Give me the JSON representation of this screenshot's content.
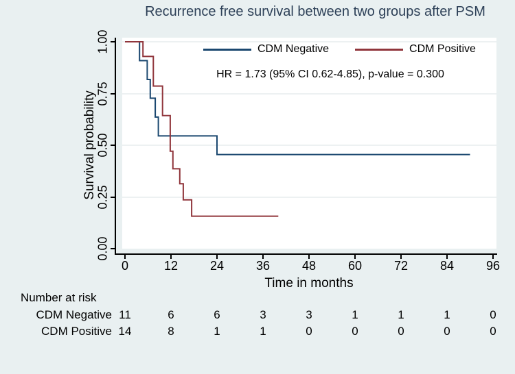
{
  "title": "Recurrence free survival between two groups after PSM",
  "colors": {
    "background": "#e9f0f1",
    "plot_background": "#ffffff",
    "gridline": "#edf1f2",
    "axis": "#000000",
    "title_text": "#2e4158",
    "cdm_negative": "#1a476f",
    "cdm_positive": "#90353b"
  },
  "chart_data": {
    "type": "line",
    "subtype": "kaplan-meier-step",
    "title": "Recurrence free survival between two groups after PSM",
    "xlabel": "Time in months",
    "ylabel": "Survival probability",
    "xlim": [
      0,
      96
    ],
    "ylim": [
      0,
      1
    ],
    "xticks": [
      0,
      12,
      24,
      36,
      48,
      60,
      72,
      84,
      96
    ],
    "ytick_values": [
      0,
      0.25,
      0.5,
      0.75,
      1
    ],
    "ytick_labels": [
      "0.00",
      "0.25",
      "0.50",
      "0.75",
      "1.00"
    ],
    "grid": true,
    "legend_position": "inside-top",
    "annotation": "HR = 1.73 (95% CI 0.62-4.85), p-value = 0.300",
    "series": [
      {
        "name": "CDM Negative",
        "color": "#1a476f",
        "steps": [
          [
            0,
            1.0
          ],
          [
            3.8,
            0.909
          ],
          [
            5.8,
            0.818
          ],
          [
            6.6,
            0.727
          ],
          [
            7.9,
            0.636
          ],
          [
            8.7,
            0.545
          ],
          [
            24,
            0.455
          ]
        ],
        "end_time": 90
      },
      {
        "name": "CDM Positive",
        "color": "#90353b",
        "steps": [
          [
            0,
            1.0
          ],
          [
            4.7,
            0.929
          ],
          [
            7.4,
            0.786
          ],
          [
            9.8,
            0.643
          ],
          [
            11.8,
            0.471
          ],
          [
            12.5,
            0.386
          ],
          [
            14.3,
            0.314
          ],
          [
            15.2,
            0.236
          ],
          [
            17.4,
            0.157
          ]
        ],
        "end_time": 40
      }
    ],
    "risk_table": {
      "header": "Number at risk",
      "times": [
        0,
        12,
        24,
        36,
        48,
        60,
        72,
        84,
        96
      ],
      "rows": [
        {
          "label": "CDM Negative",
          "values": [
            "11",
            "6",
            "6",
            "3",
            "3",
            "1",
            "1",
            "1",
            "0"
          ]
        },
        {
          "label": "CDM Positive",
          "values": [
            "14",
            "8",
            "1",
            "1",
            "0",
            "0",
            "0",
            "0",
            "0"
          ]
        }
      ]
    }
  }
}
